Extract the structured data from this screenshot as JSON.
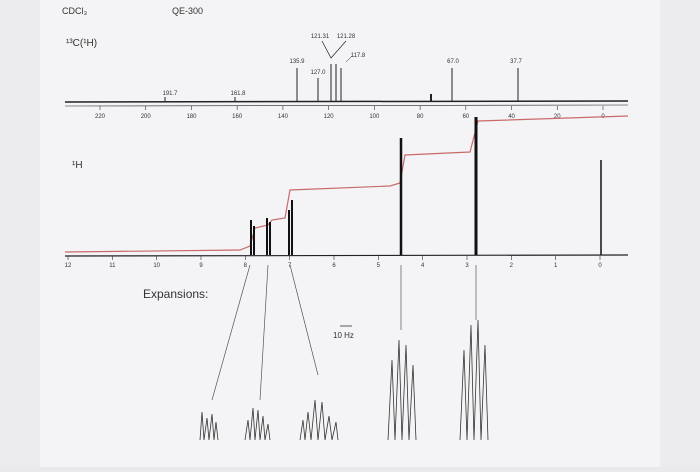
{
  "header": {
    "solvent": "CDCl₃",
    "instrument": "QE-300"
  },
  "carbon": {
    "label": "¹³C(¹H)",
    "peak_labels": [
      "191.7",
      "161.8",
      "135.9",
      "127.0",
      "121.31",
      "121.28",
      "117.8",
      "67.0",
      "37.7"
    ],
    "axis_ticks": [
      "220",
      "200",
      "180",
      "160",
      "140",
      "120",
      "100",
      "80",
      "60",
      "40",
      "20",
      "0"
    ]
  },
  "proton": {
    "label": "¹H",
    "axis_ticks": [
      "12",
      "11",
      "10",
      "9",
      "8",
      "7",
      "6",
      "5",
      "4",
      "3",
      "2",
      "1",
      "0"
    ]
  },
  "expansions": {
    "label": "Expansions:",
    "scale": "10 Hz"
  }
}
